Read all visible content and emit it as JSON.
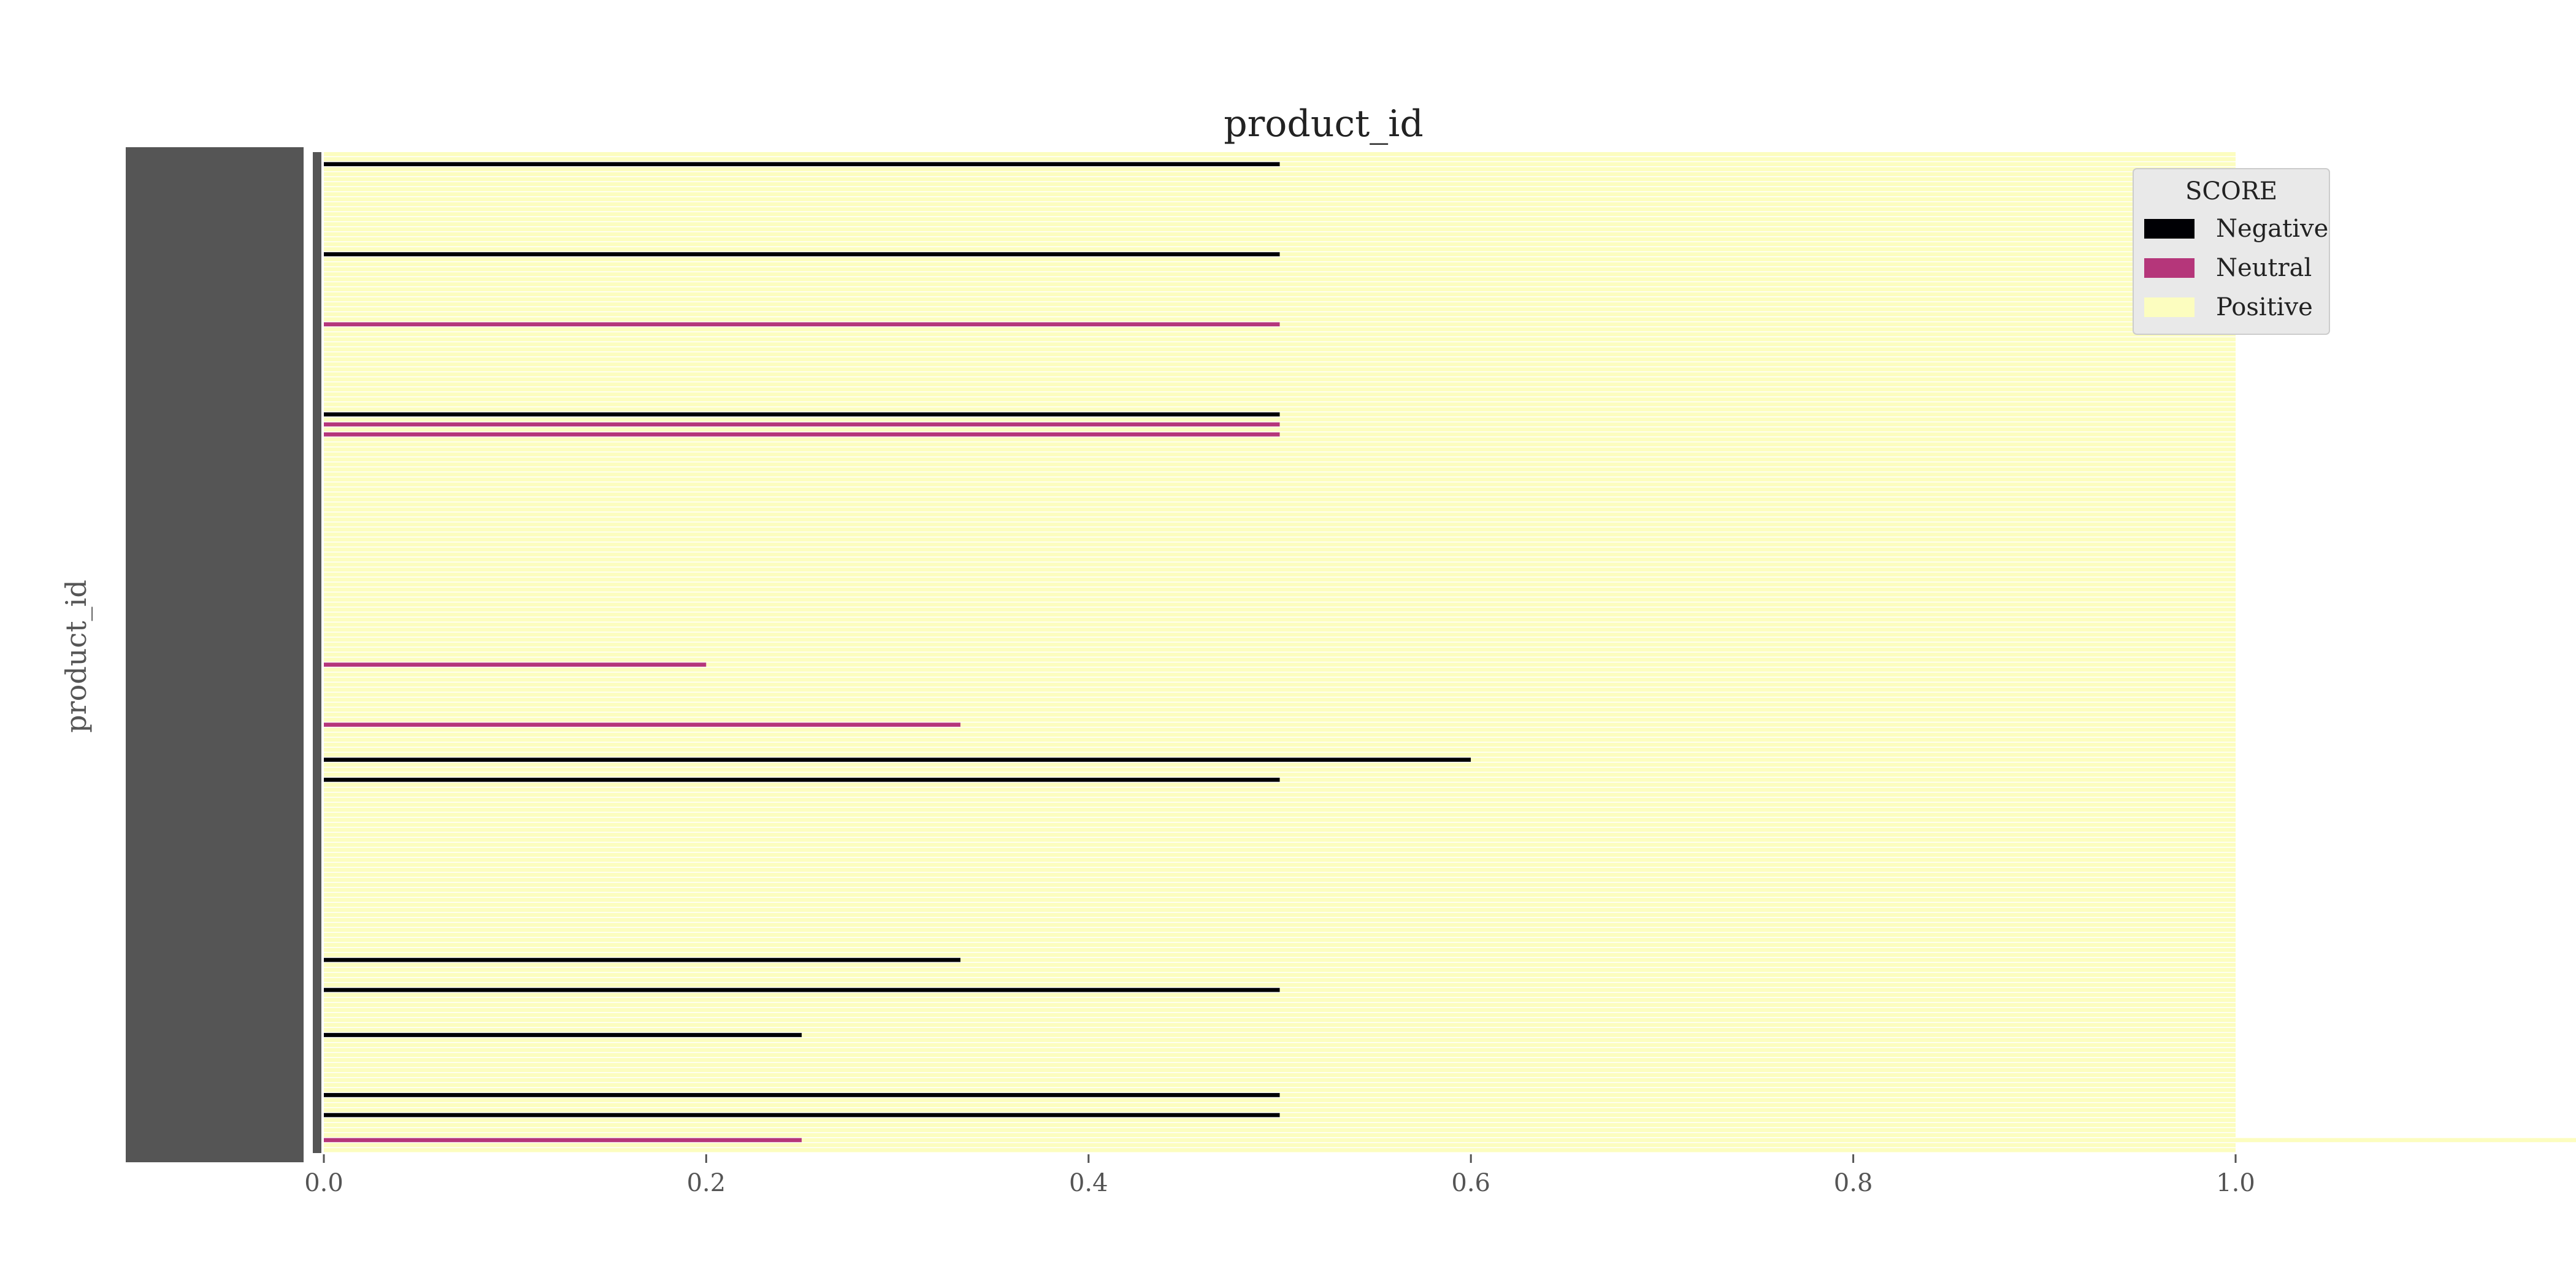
{
  "chart_data": {
    "type": "bar",
    "orientation": "horizontal",
    "stacked": true,
    "normalized": true,
    "title": "product_id",
    "xlabel": "",
    "ylabel": "product_id",
    "xlim": [
      0.0,
      1.0
    ],
    "x_ticks": [
      "0.0",
      "0.2",
      "0.4",
      "0.6",
      "0.8",
      "1.0"
    ],
    "grid": false,
    "legend": {
      "title": "SCORE",
      "position": "top-right",
      "entries": [
        {
          "name": "Negative",
          "color": "#000004"
        },
        {
          "name": "Neutral",
          "color": "#b5367a"
        },
        {
          "name": "Positive",
          "color": "#fcfdbf"
        }
      ]
    },
    "category_count": 200,
    "series": [
      {
        "name": "Negative",
        "color": "#000004",
        "values": [
          0.0,
          0.0,
          0.5,
          0.0,
          0.0,
          0.0,
          0.0,
          0.0,
          0.0,
          0.0,
          0.0,
          0.0,
          0.0,
          0.0,
          0.0,
          0.0,
          0.0,
          0.0,
          0.0,
          0.0,
          0.5,
          0.0,
          0.0,
          0.0,
          0.0,
          0.0,
          0.0,
          0.0,
          0.0,
          0.0,
          0.0,
          0.0,
          0.0,
          0.0,
          0.0,
          0.0,
          0.0,
          0.0,
          0.0,
          0.0,
          0.0,
          0.0,
          0.0,
          0.0,
          0.0,
          0.0,
          0.0,
          0.0,
          0.0,
          0.0,
          0.0,
          0.0,
          0.5,
          0.0,
          0.0,
          0.0,
          0.0,
          0.0,
          0.0,
          0.0,
          0.0,
          0.0,
          0.0,
          0.0,
          0.0,
          0.0,
          0.0,
          0.0,
          0.0,
          0.0,
          0.0,
          0.0,
          0.0,
          0.0,
          0.0,
          0.0,
          0.0,
          0.0,
          0.0,
          0.0,
          0.0,
          0.0,
          0.0,
          0.0,
          0.0,
          0.0,
          0.0,
          0.0,
          0.0,
          0.0,
          0.0,
          0.0,
          0.0,
          0.0,
          0.0,
          0.0,
          0.0,
          0.0,
          0.0,
          0.0,
          0.0,
          0.0,
          0.0,
          0.0,
          0.0,
          0.0,
          0.0,
          0.0,
          0.0,
          0.0,
          0.0,
          0.0,
          0.0,
          0.0,
          0.0,
          0.0,
          0.0,
          0.0,
          0.0,
          0.0,
          0.0,
          0.6,
          0.0,
          0.0,
          0.0,
          0.5,
          0.0,
          0.0,
          0.0,
          0.0,
          0.0,
          0.0,
          0.0,
          0.0,
          0.0,
          0.0,
          0.0,
          0.0,
          0.0,
          0.0,
          0.0,
          0.0,
          0.0,
          0.0,
          0.0,
          0.0,
          0.0,
          0.0,
          0.0,
          0.0,
          0.0,
          0.0,
          0.0,
          0.0,
          0.0,
          0.0,
          0.0,
          0.0,
          0.0,
          0.0,
          0.0,
          0.333,
          0.0,
          0.0,
          0.0,
          0.0,
          0.0,
          0.5,
          0.0,
          0.0,
          0.0,
          0.0,
          0.0,
          0.0,
          0.0,
          0.0,
          0.25,
          0.0,
          0.0,
          0.0,
          0.0,
          0.0,
          0.0,
          0.0,
          0.0,
          0.0,
          0.0,
          0.0,
          0.5,
          0.0,
          0.0,
          0.0,
          0.5,
          0.0,
          0.0,
          0.0,
          0.0,
          0.0,
          0.0,
          0.0,
          0.0,
          0.0
        ]
      },
      {
        "name": "Neutral",
        "color": "#b5367a",
        "values": [
          0.0,
          0.0,
          0.0,
          0.0,
          0.0,
          0.0,
          0.0,
          0.0,
          0.0,
          0.0,
          0.0,
          0.0,
          0.0,
          0.0,
          0.0,
          0.0,
          0.0,
          0.0,
          0.0,
          0.0,
          0.0,
          0.0,
          0.0,
          0.0,
          0.0,
          0.0,
          0.0,
          0.0,
          0.0,
          0.0,
          0.0,
          0.0,
          0.0,
          0.0,
          0.5,
          0.0,
          0.0,
          0.0,
          0.0,
          0.0,
          0.0,
          0.0,
          0.0,
          0.0,
          0.0,
          0.0,
          0.0,
          0.0,
          0.0,
          0.0,
          0.0,
          0.0,
          0.0,
          0.0,
          0.5,
          0.0,
          0.5,
          0.0,
          0.0,
          0.0,
          0.0,
          0.0,
          0.0,
          0.0,
          0.0,
          0.0,
          0.0,
          0.0,
          0.0,
          0.0,
          0.0,
          0.0,
          0.0,
          0.0,
          0.0,
          0.0,
          0.0,
          0.0,
          0.0,
          0.0,
          0.0,
          0.0,
          0.0,
          0.0,
          0.0,
          0.0,
          0.0,
          0.0,
          0.0,
          0.0,
          0.0,
          0.0,
          0.0,
          0.0,
          0.0,
          0.0,
          0.0,
          0.0,
          0.0,
          0.0,
          0.0,
          0.0,
          0.2,
          0.0,
          0.0,
          0.0,
          0.0,
          0.0,
          0.0,
          0.0,
          0.0,
          0.0,
          0.0,
          0.0,
          0.333,
          0.0,
          0.0,
          0.0,
          0.0,
          0.0,
          0.0,
          0.0,
          0.0,
          0.0,
          0.0,
          0.0,
          0.0,
          0.0,
          0.0,
          0.0,
          0.0,
          0.0,
          0.0,
          0.0,
          0.0,
          0.0,
          0.0,
          0.0,
          0.0,
          0.0,
          0.0,
          0.0,
          0.0,
          0.0,
          0.0,
          0.0,
          0.0,
          0.0,
          0.0,
          0.0,
          0.0,
          0.0,
          0.0,
          0.0,
          0.0,
          0.0,
          0.0,
          0.0,
          0.0,
          0.0,
          0.0,
          0.0,
          0.0,
          0.0,
          0.0,
          0.0,
          0.0,
          0.0,
          0.0,
          0.0,
          0.0,
          0.0,
          0.0,
          0.0,
          0.0,
          0.0,
          0.0,
          0.0,
          0.0,
          0.0,
          0.0,
          0.0,
          0.0,
          0.0,
          0.0,
          0.0,
          0.0,
          0.0,
          0.0,
          0.0,
          0.0,
          0.0,
          0.0,
          0.0,
          0.0,
          0.0,
          0.0,
          0.25,
          0.0,
          0.0
        ]
      },
      {
        "name": "Positive",
        "color": "#fcfdbf",
        "values": [
          1.0,
          1.0,
          0.5,
          1.0,
          1.0,
          1.0,
          1.0,
          1.0,
          1.0,
          1.0,
          1.0,
          1.0,
          1.0,
          1.0,
          1.0,
          1.0,
          1.0,
          1.0,
          1.0,
          1.0,
          0.5,
          1.0,
          1.0,
          1.0,
          1.0,
          1.0,
          1.0,
          1.0,
          1.0,
          1.0,
          1.0,
          1.0,
          1.0,
          1.0,
          0.5,
          1.0,
          1.0,
          1.0,
          1.0,
          1.0,
          1.0,
          1.0,
          1.0,
          1.0,
          1.0,
          1.0,
          1.0,
          1.0,
          1.0,
          1.0,
          1.0,
          1.0,
          0.5,
          1.0,
          0.5,
          1.0,
          0.5,
          1.0,
          1.0,
          1.0,
          1.0,
          1.0,
          1.0,
          1.0,
          1.0,
          1.0,
          1.0,
          1.0,
          1.0,
          1.0,
          1.0,
          1.0,
          1.0,
          1.0,
          1.0,
          1.0,
          1.0,
          1.0,
          1.0,
          1.0,
          1.0,
          1.0,
          1.0,
          1.0,
          1.0,
          1.0,
          1.0,
          1.0,
          1.0,
          1.0,
          1.0,
          1.0,
          1.0,
          1.0,
          1.0,
          1.0,
          1.0,
          1.0,
          1.0,
          1.0,
          1.0,
          1.0,
          0.8,
          1.0,
          1.0,
          1.0,
          1.0,
          1.0,
          1.0,
          1.0,
          1.0,
          1.0,
          1.0,
          1.0,
          0.667,
          1.0,
          1.0,
          1.0,
          1.0,
          1.0,
          1.0,
          0.4,
          1.0,
          1.0,
          1.0,
          0.5,
          1.0,
          1.0,
          1.0,
          1.0,
          1.0,
          1.0,
          1.0,
          1.0,
          1.0,
          1.0,
          1.0,
          1.0,
          1.0,
          1.0,
          1.0,
          1.0,
          1.0,
          1.0,
          1.0,
          1.0,
          1.0,
          1.0,
          1.0,
          1.0,
          1.0,
          1.0,
          1.0,
          1.0,
          1.0,
          1.0,
          1.0,
          1.0,
          1.0,
          1.0,
          1.0,
          0.667,
          1.0,
          1.0,
          1.0,
          1.0,
          1.0,
          0.5,
          1.0,
          1.0,
          1.0,
          1.0,
          1.0,
          1.0,
          1.0,
          1.0,
          0.75,
          1.0,
          1.0,
          1.0,
          1.0,
          1.0,
          1.0,
          1.0,
          1.0,
          1.0,
          1.0,
          1.0,
          0.5,
          1.0,
          1.0,
          1.0,
          0.5,
          1.0,
          1.0,
          1.0,
          1.0,
          1.0,
          1.0,
          1.0,
          0.75,
          1.0
        ]
      }
    ]
  }
}
